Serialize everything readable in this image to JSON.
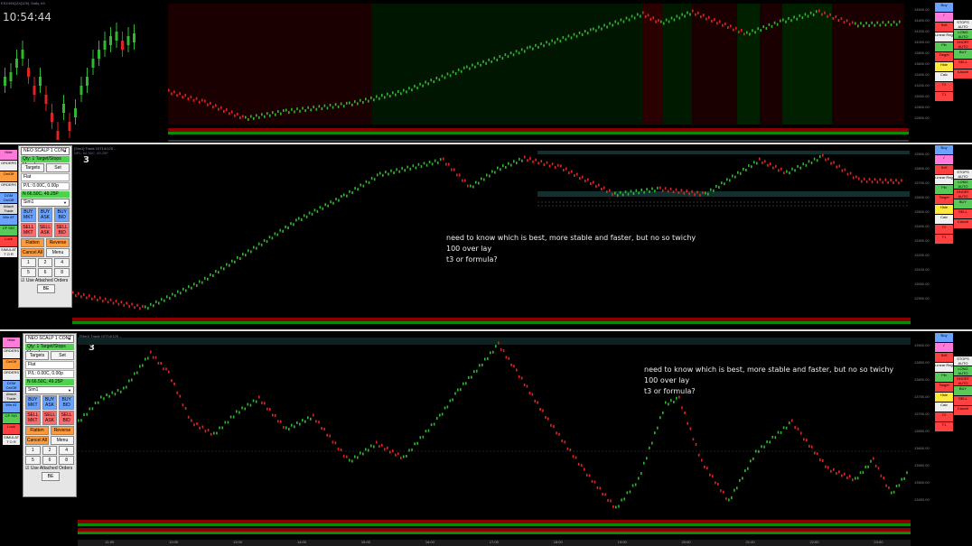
{
  "top_left_chart": {
    "title": "ESZ4/NQZ4(125), Daily, #3",
    "clock": "10:54:44"
  },
  "top_chart": {
    "title": "[Sim1] Trade 10T14/125 ...",
    "subtitle": "NPL: 18.00C, -6.25P",
    "number": "3",
    "price_labels": [
      "14600.00",
      "14400.00",
      "14200.00",
      "14000.00",
      "13800.00",
      "13600.00",
      "13400.00",
      "13200.00",
      "13000.00",
      "12800.00",
      "12600.00"
    ]
  },
  "middle_chart": {
    "title": "[Sim1] Trade 10T14/125 ...",
    "subtitle": "NPL: 66.50C, 49.25P",
    "number": "3",
    "price_labels": [
      "13900.00",
      "13800.00",
      "13700.00",
      "13600.00",
      "13500.00",
      "13400.00",
      "13300.00",
      "13200.00",
      "13100.00",
      "13000.00",
      "12900.00"
    ],
    "annotation": [
      "need to know which is best, more stable and faster, but no so twichy",
      "100 over lay",
      "t3 or formula?"
    ]
  },
  "bottom_chart": {
    "title": "[Sim1] Trade 10T14/125 ...",
    "subtitle": "NPL: 66.50C, 49.25P",
    "number": "3",
    "price_labels": [
      "13900.00",
      "13850.00",
      "13800.00",
      "13750.00",
      "13700.00",
      "13650.00",
      "13600.00",
      "13550.00",
      "13500.00",
      "13450.00"
    ],
    "annotation": [
      "need to know which is best, more stable and faster, but no so twichy",
      "100 over lay",
      "t3 or formula?"
    ],
    "time_labels": [
      "11:00",
      "12:00",
      "13:00",
      "14:00",
      "15:00",
      "16:00",
      "17:00",
      "18:00",
      "19:00",
      "20:00",
      "21:00",
      "22:00",
      "23:00"
    ]
  },
  "trade_window": {
    "strategy": "NEO SCALP 1 CONT",
    "status": "Qty: 1 Target/Stops Manuf",
    "targets": "Targets",
    "set": "Set",
    "flat": "Flat",
    "pl": "P/L: 0.00C, 0.00p",
    "npl": "N 66.50C, 49.25P",
    "account": "Sim1",
    "buy_mkt": "BUY MKT",
    "buy_ask": "BUY ASK",
    "buy_bid": "BUY BID",
    "sell_mkt": "SELL MKT",
    "sell_ask": "SELL ASK",
    "sell_bid": "SELL BID",
    "flatten": "Flatten",
    "reverse": "Reverse",
    "cancel_all": "Cancel All",
    "menu": "Menu",
    "qty": [
      "1",
      "2",
      "4",
      "5",
      "6",
      "8"
    ],
    "attached": "Use Attached Orders",
    "bottom_btn": "BE"
  },
  "left_toolbar": [
    {
      "label": "Hide",
      "color": "#ff7ad9"
    },
    {
      "label": "ORDERS",
      "color": "#f0f0f0"
    },
    {
      "label": "On/Off",
      "color": "#ff9b3b"
    },
    {
      "label": "ORDERS",
      "color": "#f0f0f0"
    },
    {
      "label": "DOM On/Off",
      "color": "#6aa2ff"
    },
    {
      "label": "Attach Trade",
      "color": "#dcdcdc"
    },
    {
      "label": "Win AT",
      "color": "#6aa2ff"
    },
    {
      "label": "CF SIG",
      "color": "#57c957"
    },
    {
      "label": "Lock",
      "color": "#ff4040"
    },
    {
      "label": "SIMULAT T O R",
      "color": "#f0f0f0"
    }
  ],
  "right_toolbar": [
    {
      "label": "Buy",
      "color": "#6aa2ff"
    },
    {
      "label": "✓",
      "color": "#ff7ad9"
    },
    {
      "label": "Sell",
      "color": "#ff4040"
    },
    {
      "label": "Linear Reg",
      "color": "#f0f0f0"
    },
    {
      "label": "Fib",
      "color": "#57c957"
    },
    {
      "label": "Target",
      "color": "#ff4040"
    },
    {
      "label": "Hide",
      "color": "#ffea3b"
    },
    {
      "label": "Calc",
      "color": "#f0f0f0"
    },
    {
      "label": "T2",
      "color": "#ff4040"
    },
    {
      "label": "T1",
      "color": "#ff4040"
    }
  ],
  "right_toolbar2": [
    {
      "label": "STOPS AUTO",
      "color": "#f0f0f0"
    },
    {
      "label": "LONG AUTO",
      "color": "#57c957"
    },
    {
      "label": "SHORT AUTO",
      "color": "#ff4040"
    },
    {
      "label": "BUY",
      "color": "#57c957"
    },
    {
      "label": "SELL",
      "color": "#ff4040"
    },
    {
      "label": "Cancel",
      "color": "#ff4040"
    }
  ]
}
